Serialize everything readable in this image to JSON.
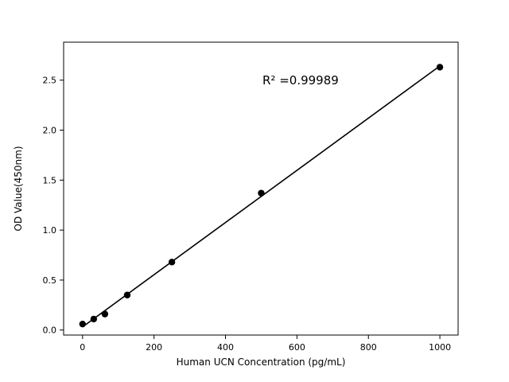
{
  "chart_data": {
    "type": "scatter",
    "title": "",
    "xlabel": "Human UCN Concentration (pg/mL)",
    "ylabel": "OD Value(450nm)",
    "x": [
      0,
      31.25,
      62.5,
      125,
      250,
      500,
      1000
    ],
    "y": [
      0.06,
      0.11,
      0.16,
      0.35,
      0.68,
      1.37,
      2.63
    ],
    "annotation": "R² =0.99989",
    "xticks": [
      0,
      200,
      400,
      600,
      800,
      1000
    ],
    "yticks": [
      0.0,
      0.5,
      1.0,
      1.5,
      2.0,
      2.5
    ],
    "xlim": [
      -53,
      1051
    ],
    "ylim": [
      -0.05,
      2.88
    ],
    "grid": false,
    "legend": "none",
    "line_style": "linear-fit",
    "marker": "circle",
    "marker_color": "#000000",
    "line_color": "#000000",
    "background_color": "#ffffff"
  }
}
